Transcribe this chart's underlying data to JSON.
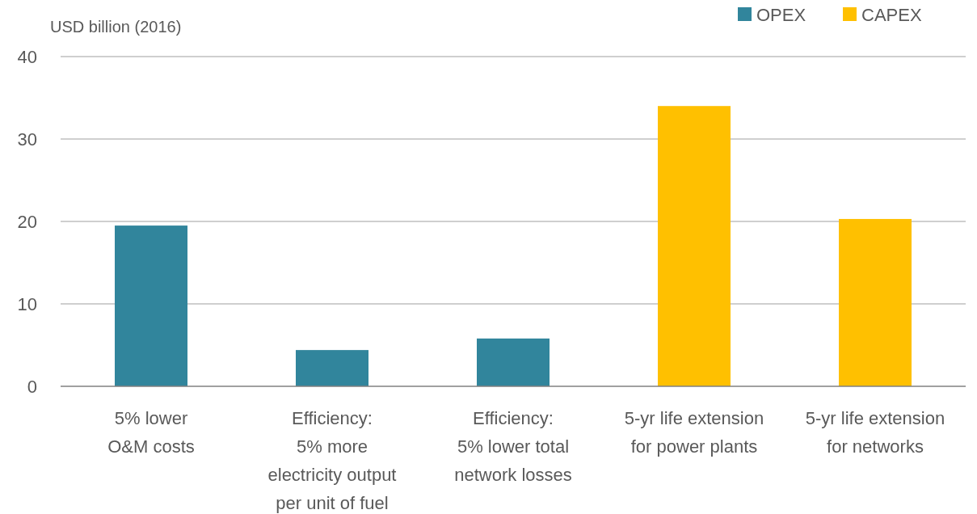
{
  "chart_data": {
    "type": "bar",
    "ylabel": "USD billion (2016)",
    "categories": [
      "5% lower\nO&M costs",
      "Efficiency:\n5% more\nelectricity output\nper unit of fuel",
      "Efficiency:\n5% lower total\nnetwork losses",
      "5-yr life extension\nfor power plants",
      "5-yr life extension\nfor networks"
    ],
    "series": [
      {
        "name": "OPEX",
        "color": "#31859c",
        "values": [
          19.5,
          4.4,
          5.8,
          null,
          null
        ]
      },
      {
        "name": "CAPEX",
        "color": "#ffc000",
        "values": [
          null,
          null,
          null,
          34.0,
          20.3
        ]
      }
    ],
    "ylim": [
      0,
      40
    ],
    "yticks": [
      0,
      10,
      20,
      30,
      40
    ],
    "grid": "y",
    "legend": "top right"
  }
}
